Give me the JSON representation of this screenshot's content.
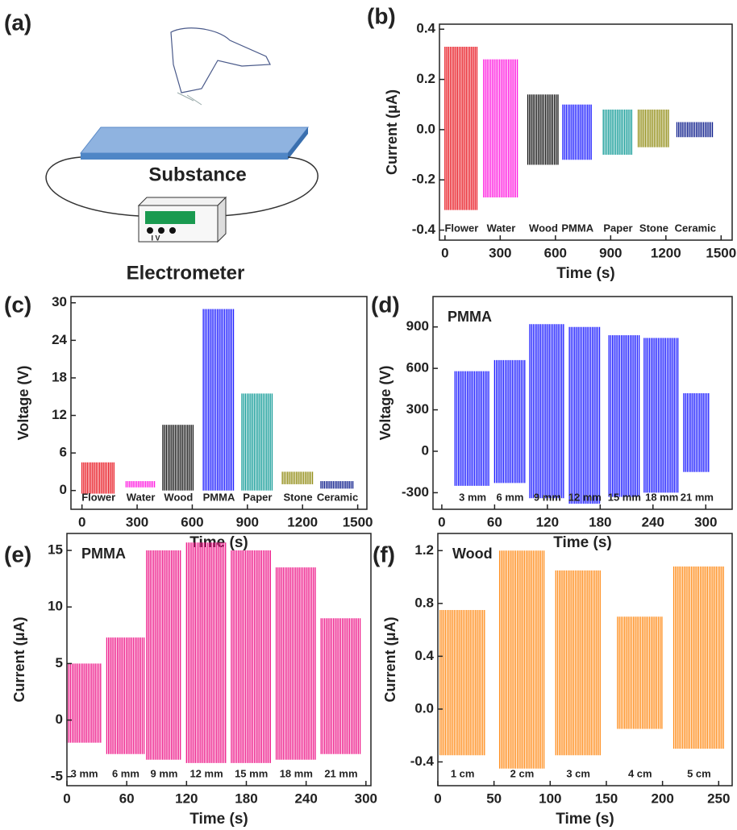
{
  "diagram": {
    "panel": "(a)",
    "labels": [
      "Substance",
      "Electrometer"
    ],
    "meter_labels": "I V"
  },
  "chart_data": [
    {
      "type": "range",
      "panel": "(b)",
      "xlabel": "Time (s)",
      "ylabel": "Current (μA)",
      "xlim": [
        -30,
        1560
      ],
      "ylim": [
        -0.44,
        0.42
      ],
      "xticks": [
        0,
        300,
        600,
        900,
        1200,
        1500
      ],
      "yticks": [
        -0.4,
        -0.2,
        {
          "value": 0,
          "label": "0.0"
        },
        0.2,
        0.4
      ],
      "series": [
        {
          "name": "Flower",
          "color": "#e8101a",
          "x": [
            0,
            180
          ],
          "values": [
            -0.32,
            0.33
          ]
        },
        {
          "name": "Water",
          "color": "#ff1ae0",
          "x": [
            210,
            400
          ],
          "values": [
            -0.27,
            0.28
          ]
        },
        {
          "name": "Wood",
          "color": "#111111",
          "x": [
            450,
            620
          ],
          "values": [
            -0.14,
            0.14
          ]
        },
        {
          "name": "PMMA",
          "color": "#1a1aff",
          "x": [
            640,
            800
          ],
          "values": [
            -0.12,
            0.1
          ]
        },
        {
          "name": "Paper",
          "color": "#0f9a96",
          "x": [
            860,
            1020
          ],
          "values": [
            -0.1,
            0.08
          ]
        },
        {
          "name": "Stone",
          "color": "#8f8a10",
          "x": [
            1050,
            1220
          ],
          "values": [
            -0.07,
            0.08
          ]
        },
        {
          "name": "Ceramic",
          "color": "#0a1a8a",
          "x": [
            1260,
            1460
          ],
          "values": [
            -0.03,
            0.03
          ]
        }
      ]
    },
    {
      "type": "range",
      "panel": "(c)",
      "xlabel": "Time (s)",
      "ylabel": "Voltage (V)",
      "xlim": [
        -60,
        1550
      ],
      "ylim": [
        -3,
        31
      ],
      "xticks": [
        0,
        300,
        600,
        900,
        1200,
        1500
      ],
      "yticks": [
        0,
        6,
        12,
        18,
        24,
        30
      ],
      "series": [
        {
          "name": "Flower",
          "color": "#e8101a",
          "x": [
            0,
            180
          ],
          "values": [
            -0.5,
            4.5
          ]
        },
        {
          "name": "Water",
          "color": "#ff1ae0",
          "x": [
            240,
            400
          ],
          "values": [
            0.5,
            1.5
          ]
        },
        {
          "name": "Wood",
          "color": "#111111",
          "x": [
            440,
            610
          ],
          "values": [
            0,
            10.5
          ]
        },
        {
          "name": "PMMA",
          "color": "#1a1aff",
          "x": [
            660,
            830
          ],
          "values": [
            0,
            29
          ]
        },
        {
          "name": "Paper",
          "color": "#0f9a96",
          "x": [
            870,
            1040
          ],
          "values": [
            0,
            15.5
          ]
        },
        {
          "name": "Stone",
          "color": "#8f8a10",
          "x": [
            1090,
            1260
          ],
          "values": [
            1,
            3
          ]
        },
        {
          "name": "Ceramic",
          "color": "#0a1a8a",
          "x": [
            1300,
            1480
          ],
          "values": [
            0.3,
            1.5
          ]
        }
      ]
    },
    {
      "type": "range",
      "panel": "(d)",
      "annotation": "PMMA",
      "xlabel": "Time (s)",
      "ylabel": "Voltage (V)",
      "xlim": [
        -10,
        330
      ],
      "ylim": [
        -420,
        1120
      ],
      "xticks": [
        0,
        60,
        120,
        180,
        240,
        300
      ],
      "yticks": [
        -300,
        0,
        300,
        600,
        900
      ],
      "series": [
        {
          "name": "3 mm",
          "color": "#1a1aff",
          "x": [
            15,
            55
          ],
          "values": [
            -250,
            580
          ]
        },
        {
          "name": "6 mm",
          "color": "#1a1aff",
          "x": [
            60,
            95
          ],
          "values": [
            -230,
            660
          ]
        },
        {
          "name": "9 mm",
          "color": "#1a1aff",
          "x": [
            100,
            140
          ],
          "values": [
            -340,
            920
          ]
        },
        {
          "name": "12 mm",
          "color": "#1a1aff",
          "x": [
            145,
            180
          ],
          "values": [
            -380,
            900
          ]
        },
        {
          "name": "15 mm",
          "color": "#1a1aff",
          "x": [
            190,
            225
          ],
          "values": [
            -330,
            840
          ]
        },
        {
          "name": "18 mm",
          "color": "#1a1aff",
          "x": [
            230,
            270
          ],
          "values": [
            -300,
            820
          ]
        },
        {
          "name": "21 mm",
          "color": "#1a1aff",
          "x": [
            275,
            305
          ],
          "values": [
            -150,
            420
          ]
        }
      ]
    },
    {
      "type": "range",
      "panel": "(e)",
      "annotation": "PMMA",
      "xlabel": "Time (s)",
      "ylabel": "Current (μA)",
      "xlim": [
        0,
        305
      ],
      "ylim": [
        -5.8,
        16.5
      ],
      "xticks": [
        0,
        60,
        120,
        180,
        240,
        300
      ],
      "yticks": [
        -5,
        0,
        5,
        10,
        15
      ],
      "series": [
        {
          "name": "3 mm",
          "color": "#ee1a8a",
          "x": [
            0,
            35
          ],
          "values": [
            -2,
            5
          ]
        },
        {
          "name": "6 mm",
          "color": "#ee1a8a",
          "x": [
            40,
            78
          ],
          "values": [
            -3,
            7.3
          ]
        },
        {
          "name": "9 mm",
          "color": "#ee1a8a",
          "x": [
            80,
            115
          ],
          "values": [
            -3.5,
            15
          ]
        },
        {
          "name": "12 mm",
          "color": "#ee1a8a",
          "x": [
            120,
            160
          ],
          "values": [
            -3.8,
            15.7
          ]
        },
        {
          "name": "15 mm",
          "color": "#ee1a8a",
          "x": [
            165,
            205
          ],
          "values": [
            -3.8,
            15
          ]
        },
        {
          "name": "18 mm",
          "color": "#ee1a8a",
          "x": [
            210,
            250
          ],
          "values": [
            -3.5,
            13.5
          ]
        },
        {
          "name": "21 mm",
          "color": "#ee1a8a",
          "x": [
            255,
            295
          ],
          "values": [
            -3,
            9
          ]
        }
      ]
    },
    {
      "type": "range",
      "panel": "(f)",
      "annotation": "Wood",
      "xlabel": "Time (s)",
      "ylabel": "Current (μA)",
      "xlim": [
        0,
        262
      ],
      "ylim": [
        -0.58,
        1.33
      ],
      "xticks": [
        0,
        50,
        100,
        150,
        200,
        250
      ],
      "yticks": [
        -0.4,
        {
          "value": 0,
          "label": "0.0"
        },
        0.4,
        0.8,
        1.2
      ],
      "series": [
        {
          "name": "1 cm",
          "color": "#ff8c1a",
          "x": [
            2,
            42
          ],
          "values": [
            -0.35,
            0.75
          ]
        },
        {
          "name": "2 cm",
          "color": "#ff8c1a",
          "x": [
            55,
            95
          ],
          "values": [
            -0.45,
            1.2
          ]
        },
        {
          "name": "3 cm",
          "color": "#ff8c1a",
          "x": [
            105,
            145
          ],
          "values": [
            -0.35,
            1.05
          ]
        },
        {
          "name": "4 cm",
          "color": "#ff8c1a",
          "x": [
            160,
            200
          ],
          "values": [
            -0.15,
            0.7
          ]
        },
        {
          "name": "5 cm",
          "color": "#ff8c1a",
          "x": [
            210,
            255
          ],
          "values": [
            -0.3,
            1.08
          ]
        }
      ]
    }
  ]
}
